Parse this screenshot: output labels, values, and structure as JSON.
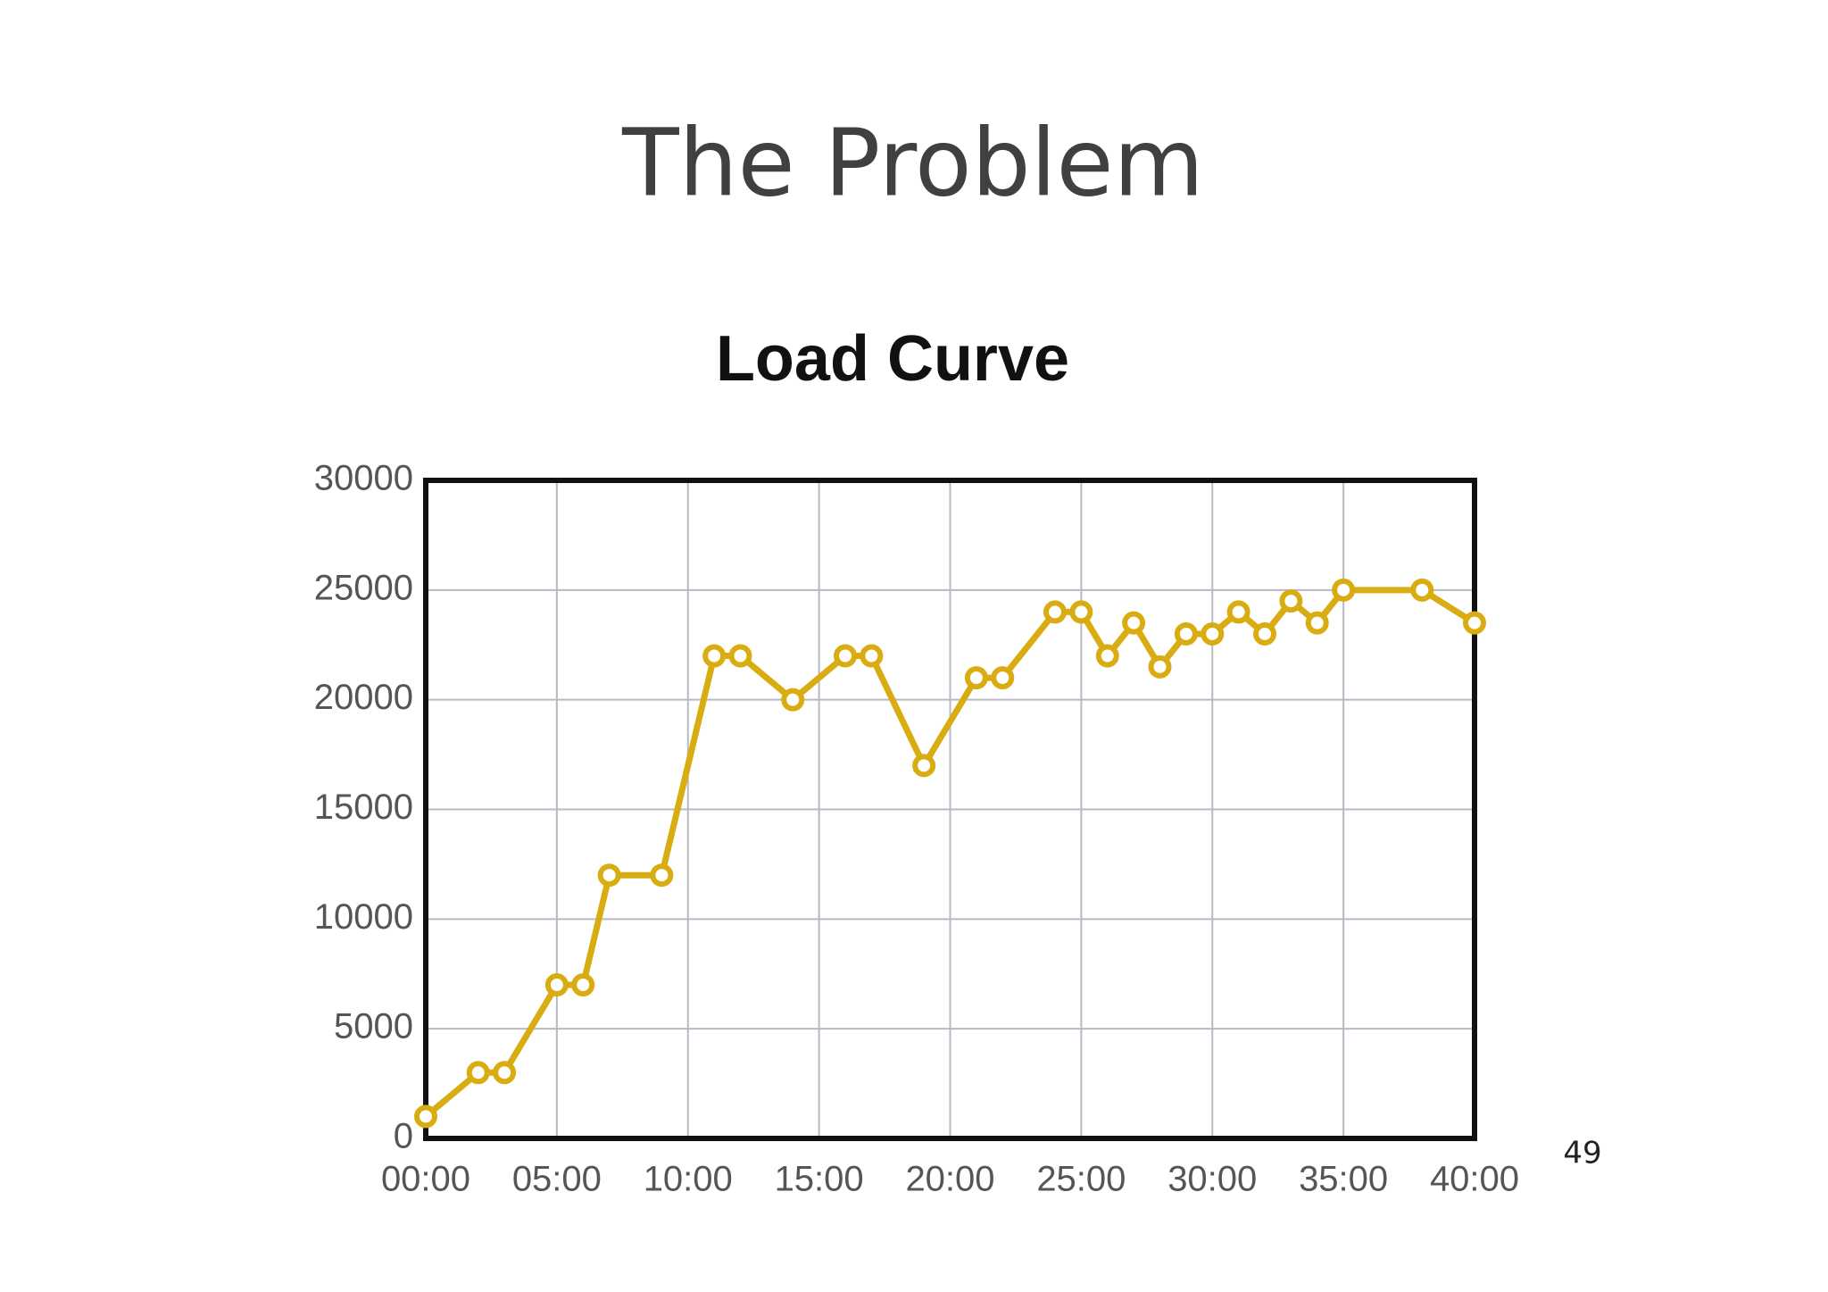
{
  "slide": {
    "title": "The Problem",
    "page_number": "49"
  },
  "chart_data": {
    "type": "line",
    "title": "Load Curve",
    "x": [
      0,
      2,
      3,
      5,
      6,
      7,
      9,
      11,
      12,
      14,
      16,
      17,
      19,
      21,
      22,
      24,
      25,
      26,
      27,
      28,
      29,
      30,
      31,
      32,
      33,
      34,
      35,
      38,
      40
    ],
    "values": [
      1000,
      3000,
      3000,
      7000,
      7000,
      12000,
      12000,
      22000,
      22000,
      20000,
      22000,
      22000,
      17000,
      21000,
      21000,
      24000,
      24000,
      22000,
      23500,
      21500,
      23000,
      23000,
      24000,
      23000,
      24500,
      23500,
      25000,
      25000,
      23500
    ],
    "color": "#d9ac12",
    "xlim": [
      0,
      40
    ],
    "xticks": [
      {
        "value": 0,
        "label": "00:00"
      },
      {
        "value": 5,
        "label": "05:00"
      },
      {
        "value": 10,
        "label": "10:00"
      },
      {
        "value": 15,
        "label": "15:00"
      },
      {
        "value": 20,
        "label": "20:00"
      },
      {
        "value": 25,
        "label": "25:00"
      },
      {
        "value": 30,
        "label": "30:00"
      },
      {
        "value": 35,
        "label": "35:00"
      },
      {
        "value": 40,
        "label": "40:00"
      }
    ],
    "ylim": [
      0,
      30000
    ],
    "yticks": [
      0,
      5000,
      10000,
      15000,
      20000,
      25000,
      30000
    ],
    "grid": true,
    "markers": true
  }
}
